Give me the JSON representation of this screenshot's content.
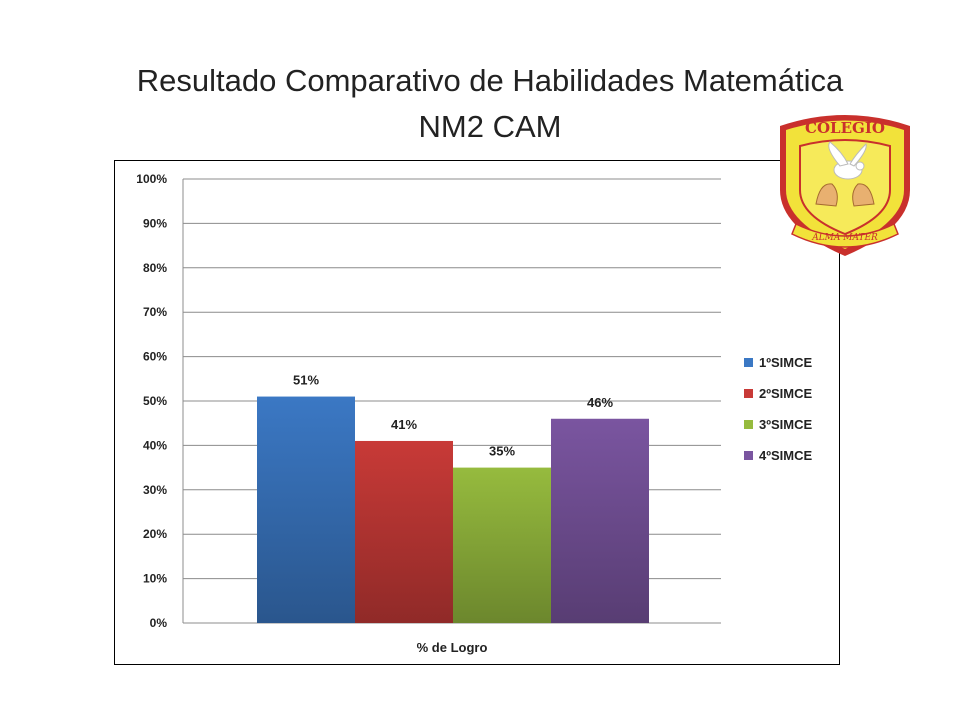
{
  "title": {
    "line1": "Resultado  Comparativo de Habilidades  Matemática",
    "line2": "NM2 CAM"
  },
  "logo": {
    "top_text": "COLEGIO",
    "bottom_text": "ALMA MATER",
    "colors": {
      "fill": "#f2e23a",
      "border": "#c9302c",
      "inner": "#f6ea5a"
    }
  },
  "chart_data": {
    "type": "bar",
    "categories": [
      "% de Logro"
    ],
    "xlabel": "% de Logro",
    "ylabel": "",
    "ylim": [
      0,
      100
    ],
    "yticks": [
      "0%",
      "10%",
      "20%",
      "30%",
      "40%",
      "50%",
      "60%",
      "70%",
      "80%",
      "90%",
      "100%"
    ],
    "grid": true,
    "legend_position": "right",
    "series": [
      {
        "name": "1ºSIMCE",
        "values": [
          51
        ],
        "label": "51%",
        "color": "#3b78c4"
      },
      {
        "name": "2ºSIMCE",
        "values": [
          41
        ],
        "label": "41%",
        "color": "#c83a37"
      },
      {
        "name": "3ºSIMCE",
        "values": [
          35
        ],
        "label": "35%",
        "color": "#96bb3e"
      },
      {
        "name": "4ºSIMCE",
        "values": [
          46
        ],
        "label": "46%",
        "color": "#7a55a0"
      }
    ]
  }
}
